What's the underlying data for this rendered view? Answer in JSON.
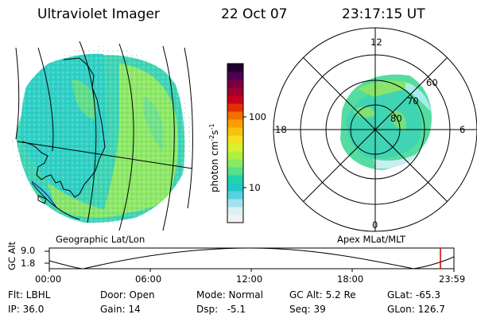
{
  "header": {
    "instrument": "Ultraviolet Imager",
    "date": "22 Oct 07",
    "time": "23:17:15 UT"
  },
  "left_panel": {
    "caption": "Geographic Lat/Lon"
  },
  "right_panel": {
    "caption": "Apex MLat/MLT",
    "mlt_labels": {
      "top": "12",
      "left": "18",
      "right": "6",
      "bottom": "0"
    },
    "lat_labels": [
      "60",
      "70",
      "80"
    ]
  },
  "colorbar": {
    "unit_label": "photon cm",
    "unit_exp1": "-2",
    "unit_mid": "s",
    "unit_exp2": "-1",
    "tick_labels": [
      "100",
      "10"
    ],
    "colors": [
      "#f2f2f2",
      "#d9f0f5",
      "#a6e0ec",
      "#55d4dc",
      "#22c8c8",
      "#22d4a8",
      "#55e08a",
      "#88ea60",
      "#b0f040",
      "#d8f030",
      "#f0e020",
      "#f8c010",
      "#f8a000",
      "#f07000",
      "#e03000",
      "#c80020",
      "#a00030",
      "#780040",
      "#500050",
      "#200030"
    ]
  },
  "timeline": {
    "axis_label": "GC Alt",
    "y_ticks": [
      "9.0",
      "1.8"
    ],
    "x_ticks": [
      "00:00",
      "06:00",
      "12:00",
      "18:00",
      "23:59"
    ],
    "marker_color": "#cc0000"
  },
  "status": {
    "row1": [
      {
        "text": "Flt: LBHL"
      },
      {
        "text": "Door: Open"
      },
      {
        "text": "Mode: Normal"
      },
      {
        "text": "GC Alt: 5.2 Re"
      },
      {
        "text": "GLat: -65.3"
      }
    ],
    "row2": [
      {
        "text": "IP: 36.0"
      },
      {
        "text": "Gain: 14"
      },
      {
        "text": "Dsp:   -5.1"
      },
      {
        "text": "Seq: 39"
      },
      {
        "text": "GLon: 126.7"
      }
    ]
  }
}
